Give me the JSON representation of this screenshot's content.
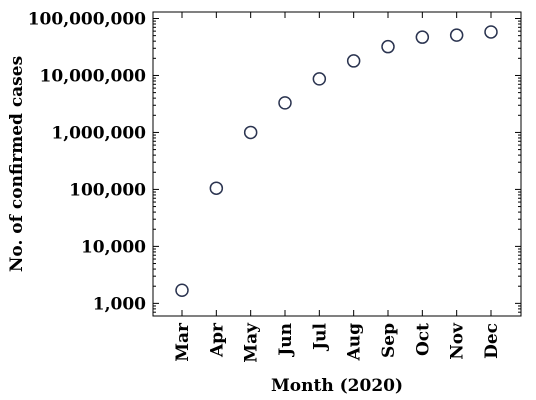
{
  "chart_data": {
    "type": "scatter",
    "title": "",
    "xlabel": "Month (2020)",
    "ylabel": "No. of confirmed cases",
    "yscale": "log",
    "ylim": [
      600,
      130000000
    ],
    "categories": [
      "Mar",
      "Apr",
      "May",
      "Jun",
      "Jul",
      "Aug",
      "Sep",
      "Oct",
      "Nov",
      "Dec"
    ],
    "values": [
      1700,
      105000,
      1000000,
      3300000,
      8700000,
      18000000,
      32000000,
      47000000,
      51000000,
      58000000
    ],
    "y_ticks": [
      {
        "value": 1000,
        "label": "1,000"
      },
      {
        "value": 10000,
        "label": "10,000"
      },
      {
        "value": 100000,
        "label": "100,000"
      },
      {
        "value": 1000000,
        "label": "1,000,000"
      },
      {
        "value": 10000000,
        "label": "10,000,000"
      },
      {
        "value": 100000000,
        "label": "100,000,000"
      }
    ],
    "grid": false,
    "marker": "open-circle",
    "marker_color": "#2b3450"
  }
}
